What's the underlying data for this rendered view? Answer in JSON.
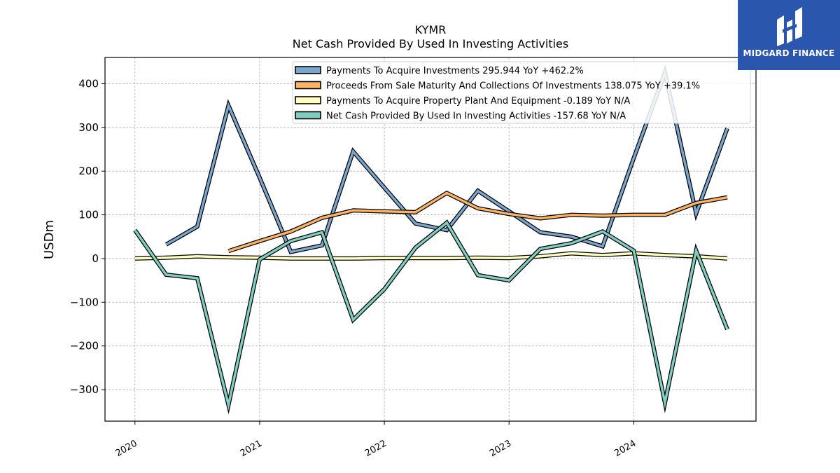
{
  "chart_data": {
    "type": "line",
    "title": "KYMR",
    "subtitle": "Net Cash Provided By Used In Investing Activities",
    "ylabel": "USDm",
    "xlabel": "",
    "xlim": [
      2019.76,
      2024.98
    ],
    "ylim": [
      -372,
      460
    ],
    "yticks": [
      -300,
      -200,
      -100,
      0,
      100,
      200,
      300,
      400
    ],
    "xticks": [
      "2020",
      "2021",
      "2022",
      "2023",
      "2024"
    ],
    "grid": true,
    "legend_position": "top-right",
    "series": [
      {
        "name": "Payments To Acquire Investments  295.944 YoY +462.2%",
        "color": "#7aa6cd",
        "x": [
          2020.25,
          2020.5,
          2020.75,
          2021.0,
          2021.25,
          2021.5,
          2021.75,
          2022.0,
          2022.25,
          2022.5,
          2022.75,
          2023.0,
          2023.25,
          2023.5,
          2023.75,
          2024.0,
          2024.25,
          2024.5,
          2024.75
        ],
        "values": [
          32,
          73,
          350,
          185,
          15,
          30,
          245,
          162,
          80,
          65,
          155,
          108,
          60,
          50,
          28,
          230,
          425,
          103,
          298
        ]
      },
      {
        "name": "Proceeds From Sale Maturity And Collections Of Investments  138.075 YoY +39.1%",
        "color": "#fdb363",
        "x": [
          2020.75,
          2021.0,
          2021.25,
          2021.5,
          2021.75,
          2022.0,
          2022.25,
          2022.5,
          2022.75,
          2023.0,
          2023.25,
          2023.5,
          2023.75,
          2024.0,
          2024.25,
          2024.5,
          2024.75
        ],
        "values": [
          17,
          40,
          62,
          93,
          110,
          108,
          106,
          150,
          115,
          102,
          92,
          100,
          98,
          100,
          100,
          127,
          140
        ]
      },
      {
        "name": "Payments To Acquire Property Plant And Equipment  -0.189 YoY N/A",
        "color": "#ffffbf",
        "x": [
          2020.0,
          2020.25,
          2020.5,
          2020.75,
          2021.0,
          2021.25,
          2021.5,
          2021.75,
          2022.0,
          2022.25,
          2022.5,
          2022.75,
          2023.0,
          2023.25,
          2023.5,
          2023.75,
          2024.0,
          2024.25,
          2024.5,
          2024.75
        ],
        "values": [
          0,
          2,
          5,
          3,
          2,
          0,
          0,
          0,
          1,
          1,
          1,
          2,
          1,
          5,
          12,
          8,
          12,
          8,
          5,
          0
        ]
      },
      {
        "name": "Net Cash Provided By Used In Investing Activities  -157.68 YoY N/A",
        "color": "#80cdc1",
        "x": [
          2020.0,
          2020.25,
          2020.5,
          2020.75,
          2021.0,
          2021.25,
          2021.5,
          2021.75,
          2022.0,
          2022.25,
          2022.5,
          2022.75,
          2023.0,
          2023.25,
          2023.5,
          2023.75,
          2024.0,
          2024.25,
          2024.5,
          2024.75
        ],
        "values": [
          65,
          -37,
          -45,
          -335,
          -2,
          40,
          60,
          -140,
          -70,
          25,
          82,
          -38,
          -50,
          22,
          35,
          62,
          18,
          -330,
          18,
          -162
        ]
      }
    ]
  },
  "logo": {
    "text": "MIDGARD FINANCE"
  }
}
